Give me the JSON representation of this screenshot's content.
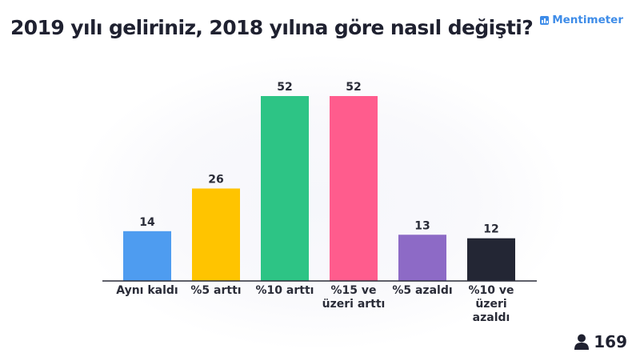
{
  "header": {
    "title": "2019 yılı geliriniz, 2018 yılına göre nasıl değişti?",
    "logo_text": "Mentimeter",
    "logo_icon": "mentimeter-logo-icon"
  },
  "footer": {
    "participants_icon": "person-icon",
    "participants_count": "169"
  },
  "chart_data": {
    "type": "bar",
    "categories": [
      "Aynı kaldı",
      "%5 arttı",
      "%10 arttı",
      "%15 ve üzeri arttı",
      "%5 azaldı",
      "%10 ve üzeri azaldı"
    ],
    "values": [
      14,
      26,
      52,
      52,
      13,
      12
    ],
    "colors": [
      "#4e9cf0",
      "#ffc400",
      "#2dc485",
      "#ff5c8d",
      "#8d6ac6",
      "#232634"
    ],
    "ylim": [
      0,
      52
    ],
    "grid": false,
    "value_labels": true
  }
}
